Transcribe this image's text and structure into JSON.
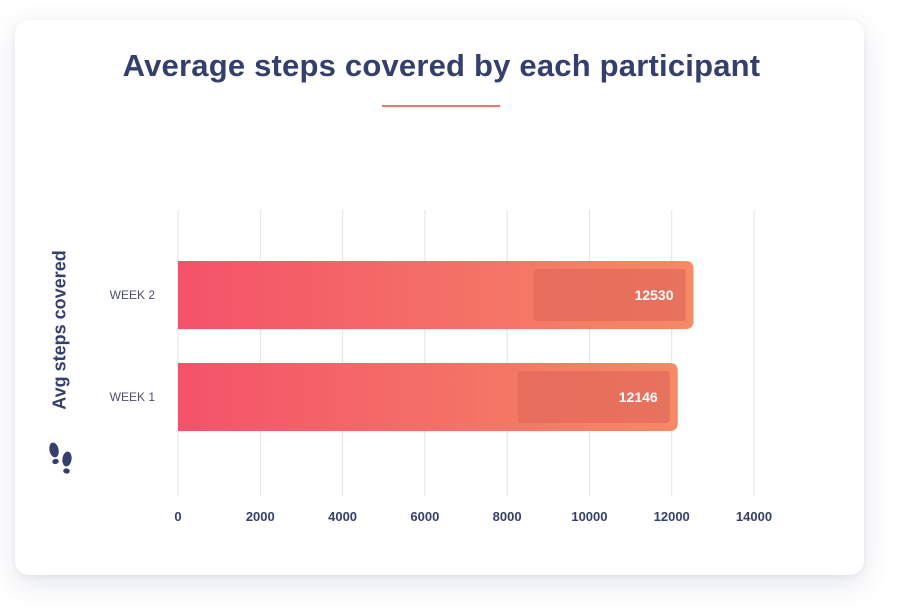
{
  "chart_data": {
    "type": "bar",
    "orientation": "horizontal",
    "title": "Average steps covered by each participant",
    "xlabel": "",
    "ylabel": "Avg steps covered",
    "categories": [
      "WEEK 1",
      "WEEK 2"
    ],
    "values": [
      12146,
      12530
    ],
    "data_labels": [
      "12146",
      "12530"
    ],
    "xlim": [
      0,
      14000
    ],
    "xticks": [
      0,
      2000,
      4000,
      6000,
      8000,
      10000,
      12000,
      14000
    ],
    "grid": true,
    "legend": "none"
  },
  "colors": {
    "title": "#353f6b",
    "accent_line": "#f0706a",
    "bar_start": "#f4526a",
    "bar_end": "#f58a64",
    "label_box": "#e2695a",
    "grid": "#e3e3e7",
    "tick_label": "#353f6b",
    "category_label": "#4a5170",
    "data_label": "#ffffff"
  },
  "icons": {
    "ylabel_icon": "footprints-icon"
  }
}
